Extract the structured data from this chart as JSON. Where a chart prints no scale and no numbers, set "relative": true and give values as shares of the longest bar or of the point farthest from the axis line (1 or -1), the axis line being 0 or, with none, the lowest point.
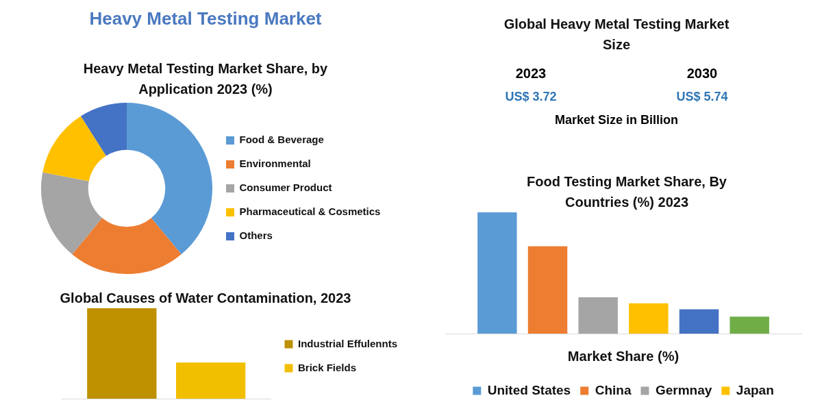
{
  "chart_data": [
    {
      "type": "other",
      "title": "Heavy Metal Testing Market"
    },
    {
      "type": "donut",
      "title": "Heavy Metal Testing Market Share, by Application 2023 (%)",
      "categories": [
        "Food & Beverage",
        "Environmental",
        "Consumer Product",
        "Pharmaceutical & Cosmetics",
        "Others"
      ],
      "values": [
        39,
        22,
        17,
        13,
        9
      ],
      "colors": [
        "#5b9bd5",
        "#ed7d31",
        "#a5a5a5",
        "#ffc000",
        "#4472c4"
      ],
      "legend": "right"
    },
    {
      "type": "other",
      "title": "Global Heavy Metal Testing Market Size",
      "annotations": [
        "2023",
        "US$ 3.72",
        "2030",
        "US$ 5.74",
        "Market Size in Billion"
      ]
    },
    {
      "type": "bar",
      "title": "Food Testing Market Share, By Countries (%) 2023",
      "xlabel": "Market Share (%)",
      "categories": [
        null
      ],
      "relative": true,
      "legend": "bottom",
      "series": [
        {
          "name": "United States",
          "color": "#5b9bd5",
          "values": [
            1
          ]
        },
        {
          "name": "China",
          "color": "#ed7d31",
          "values": [
            0.72
          ]
        },
        {
          "name": "Germnay",
          "color": "#a5a5a5",
          "values": [
            0.3
          ]
        },
        {
          "name": "Japan",
          "color": "#ffc000",
          "values": [
            0.25
          ]
        },
        {
          "color": "#4472c4",
          "values": [
            0.2
          ]
        },
        {
          "color": "#70ad47",
          "values": [
            0.14
          ]
        }
      ]
    },
    {
      "type": "bar",
      "title": "Global Causes of Water Contamination, 2023",
      "categories": [
        null
      ],
      "relative": true,
      "legend": "right",
      "series": [
        {
          "name": "Industrial Effulennts",
          "color": "#bf9000",
          "values": [
            1
          ]
        },
        {
          "name": "Brick Fields",
          "color": "#f2bf00",
          "values": [
            0.4
          ]
        }
      ]
    }
  ]
}
